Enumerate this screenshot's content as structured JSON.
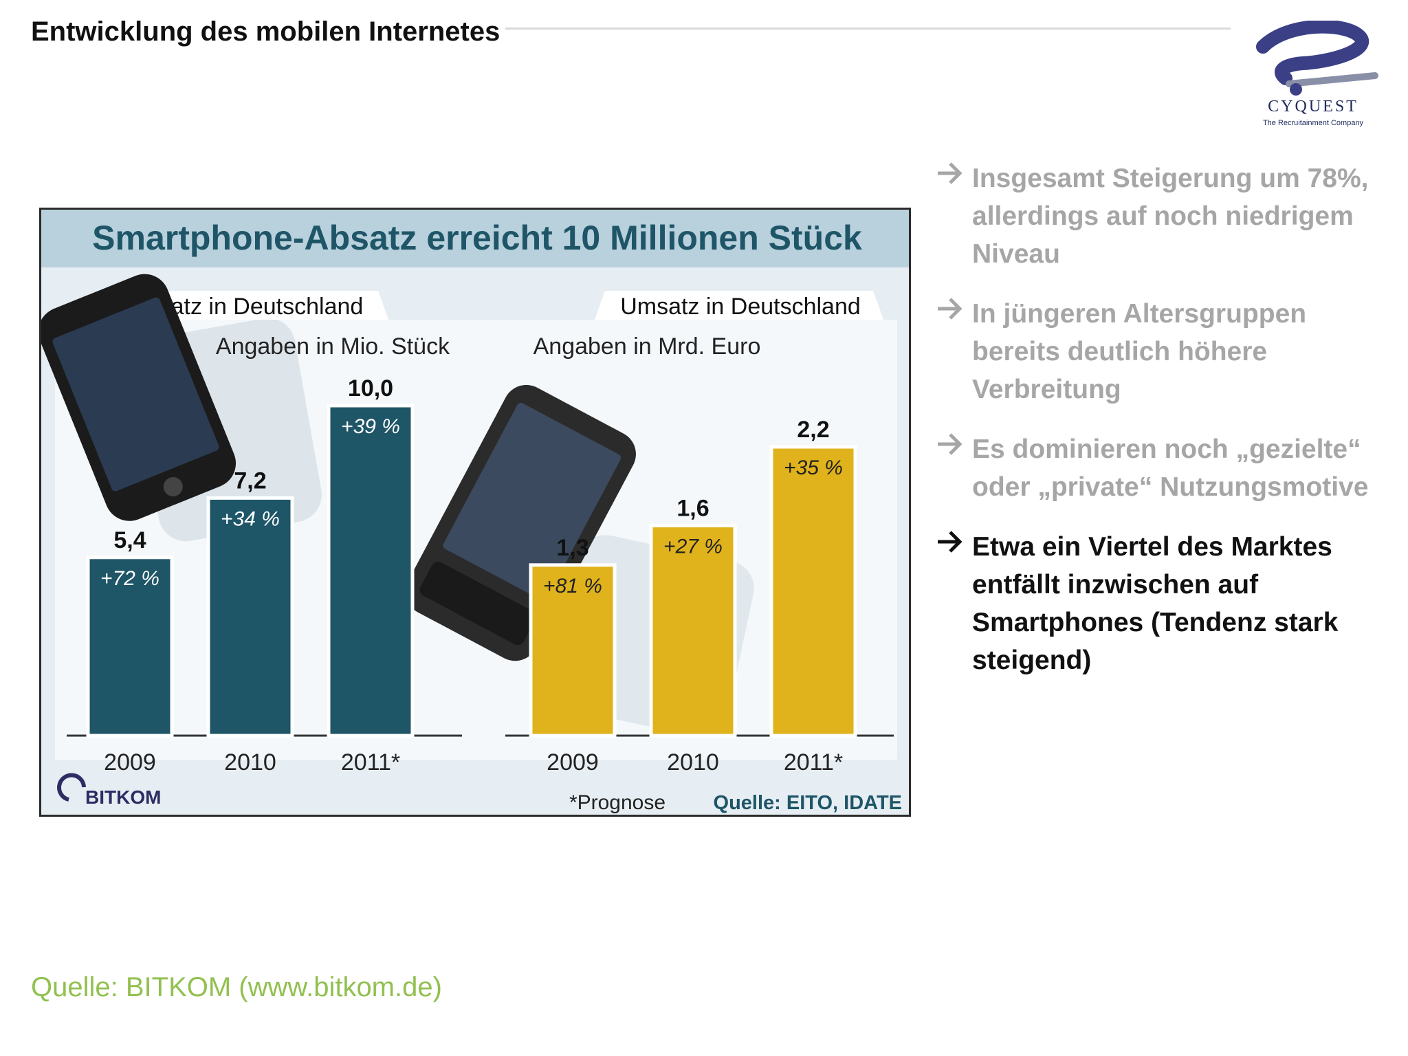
{
  "slide": {
    "title": "Entwicklung des mobilen Internetes",
    "source": "Quelle: BITKOM (www.bitkom.de)"
  },
  "logo": {
    "word": "CYQUEST",
    "tagline": "The Recruitainment Company"
  },
  "bullets": [
    {
      "text": "Insgesamt Steigerung um 78%, allerdings auf noch niedrigem Niveau",
      "active": false
    },
    {
      "text": "In jüngeren Altersgruppen bereits deutlich höhere Verbreitung",
      "active": false
    },
    {
      "text": "Es dominieren noch „gezielte“ oder „private“ Nutzungsmotive",
      "active": false
    },
    {
      "text": "Etwa ein Viertel des Marktes entfällt inzwischen auf Smartphones (Tendenz stark steigend)",
      "active": true
    }
  ],
  "chart_data": [
    {
      "type": "bar",
      "title": "Smartphone-Absatz erreicht 10 Millionen Stück",
      "subtitle": "Absatz in Deutschland",
      "unit_label": "Angaben in Mio. Stück",
      "categories": [
        "2009",
        "2010",
        "2011*"
      ],
      "values": [
        5.4,
        7.2,
        10.0
      ],
      "value_labels": [
        "5,4",
        "7,2",
        "10,0"
      ],
      "growth_labels": [
        "+72 %",
        "+34 %",
        "+39 %"
      ],
      "color": "#1e5567",
      "ylim": [
        0,
        10.0
      ]
    },
    {
      "type": "bar",
      "title": "Smartphone-Absatz erreicht 10 Millionen Stück",
      "subtitle": "Umsatz in Deutschland",
      "unit_label": "Angaben in Mrd. Euro",
      "categories": [
        "2009",
        "2010",
        "2011*"
      ],
      "values": [
        1.3,
        1.6,
        2.2
      ],
      "value_labels": [
        "1,3",
        "1,6",
        "2,2"
      ],
      "growth_labels": [
        "+81 %",
        "+27 %",
        "+35 %"
      ],
      "color": "#e0b21c",
      "ylim": [
        0,
        2.2
      ]
    }
  ],
  "chart_footer": {
    "brand": "BITKOM",
    "note": "*Prognose",
    "source": "Quelle: EITO, IDATE"
  },
  "colors": {
    "title_bar": "#b9d0dd",
    "title_text": "#1e5567",
    "panel": "#f4f8fb",
    "source_green": "#92c050"
  }
}
